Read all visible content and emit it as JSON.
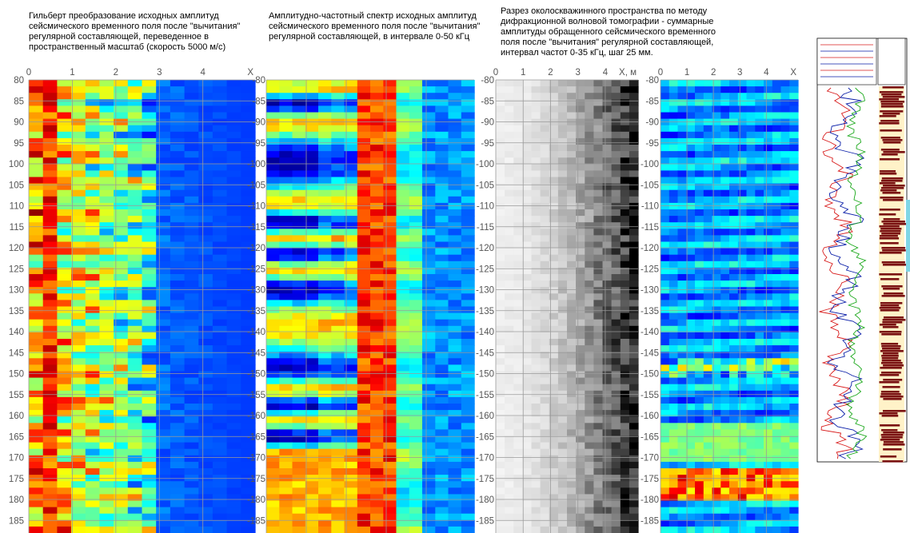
{
  "captions": {
    "p1": "Гильберт преобразование исходных амплитуд\nсейсмического временного поля после \"вычитания\"\nрегулярной составляющей, переведенное в\nпространственный масштаб (скорость 5000 м/с)",
    "p2": "Амплитудно-частотный спектр исходных амплитуд\nсейсмического временного поля после \"вычитания\"\nрегулярной составляющей, в интервале 0-50 кГц",
    "p3": "Разрез околоскважинного пространства по методу\nдифракционной волновой томографии - суммарные\nамплитуды обращенного сейсмического временного\nполя после \"вычитания\" регулярной составляющей,\nинтервал частот 0-35 кГц, шаг 25 мм."
  },
  "colors": {
    "jet_low": "#1a1aa0",
    "jet_mid": "#00ff00",
    "jet_high": "#ff2a00",
    "gray_light": "#f2f2f2",
    "gray_dark": "#000000",
    "log_red": "#d81b1b",
    "log_blue": "#0a1ea8",
    "log_green": "#1aa81a",
    "core_red": "#7a1212",
    "core_bg": "#fff2c8"
  },
  "chart_data": [
    {
      "type": "heatmap",
      "colormap": "jet",
      "x_axis_top": {
        "ticks": [
          "0",
          "1",
          "2",
          "3",
          "4"
        ],
        "label": "X",
        "xlim": [
          0,
          5.2
        ]
      },
      "y_ticks": [
        "80",
        "85",
        "90",
        "95",
        "100",
        "105",
        "110",
        "115",
        "120",
        "125",
        "130",
        "135",
        "140",
        "145",
        "150",
        "155",
        "160",
        "165",
        "170",
        "175",
        "180",
        "185"
      ],
      "ylim": [
        80,
        188
      ],
      "grid": true
    },
    {
      "type": "heatmap",
      "colormap": "jet",
      "y_ticks": [
        "-80",
        "-85",
        "-90",
        "-95",
        "-100",
        "-105",
        "-110",
        "-115",
        "-120",
        "-125",
        "-130",
        "-135",
        "-140",
        "-145",
        "-150",
        "-155",
        "-160",
        "-165",
        "-170",
        "-175",
        "-180",
        "-185"
      ],
      "ylim": [
        80,
        188
      ],
      "grid": true
    },
    {
      "type": "heatmap",
      "colormap": "gray",
      "x_axis_top": {
        "ticks": [
          "0",
          "1",
          "2",
          "3",
          "4"
        ],
        "label": "X, м",
        "xlim": [
          0,
          5.2
        ]
      },
      "y_ticks": [
        "-80",
        "-85",
        "-90",
        "-95",
        "-100",
        "-105",
        "-110",
        "-115",
        "-120",
        "-125",
        "-130",
        "-135",
        "-140",
        "-145",
        "-150",
        "-155",
        "-160",
        "-165",
        "-170",
        "-175",
        "-180",
        "-185"
      ],
      "ylim": [
        80,
        188
      ],
      "grid": true
    },
    {
      "type": "heatmap",
      "colormap": "jet",
      "x_axis_top": {
        "ticks": [
          "0",
          "1",
          "2",
          "3",
          "4"
        ],
        "label": "X",
        "xlim": [
          0,
          5.2
        ]
      },
      "y_ticks": [
        "-80",
        "-85",
        "-90",
        "-95",
        "-100",
        "-105",
        "-110",
        "-115",
        "-120",
        "-125",
        "-130",
        "-135",
        "-140",
        "-145",
        "-150",
        "-155",
        "-160",
        "-165",
        "-170",
        "-175",
        "-180",
        "-185"
      ],
      "ylim": [
        80,
        188
      ],
      "grid": true
    }
  ]
}
